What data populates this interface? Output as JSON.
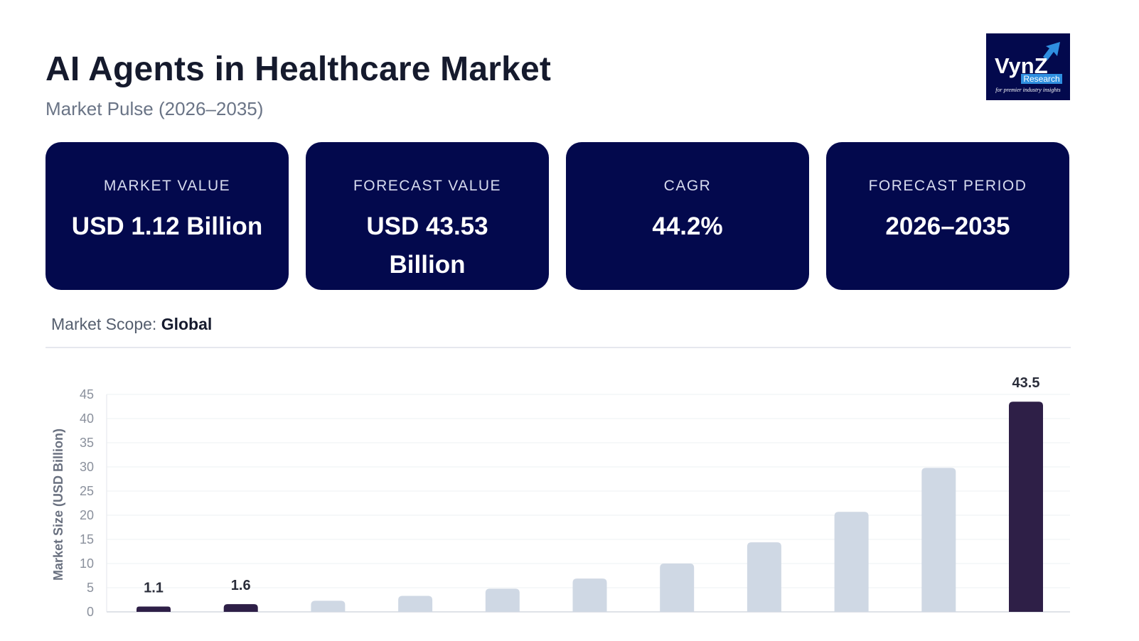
{
  "header": {
    "title": "AI Agents in Healthcare Market",
    "subtitle": "Market Pulse (2026–2035)"
  },
  "logo": {
    "brand": "VynZ",
    "tag": "Research",
    "tagline": "for premier industry insights",
    "colors": {
      "bg": "#03094d",
      "accent": "#2f8fe0"
    }
  },
  "cards": [
    {
      "label": "MARKET VALUE",
      "value": "USD 1.12 Billion"
    },
    {
      "label": "FORECAST VALUE",
      "value": "USD 43.53 Billion"
    },
    {
      "label": "CAGR",
      "value": "44.2%"
    },
    {
      "label": "FORECAST PERIOD",
      "value": "2026–2035"
    }
  ],
  "scope": {
    "label": "Market Scope:",
    "value": "Global"
  },
  "colors": {
    "card_bg": "#03094d",
    "highlight_bar": "#2e1f47",
    "bar": "#cfd8e4"
  },
  "chart_data": {
    "type": "bar",
    "ylabel": "Market Size (USD Billion)",
    "ylim": [
      0,
      45
    ],
    "yticks": [
      0,
      5,
      10,
      15,
      20,
      25,
      30,
      35,
      40,
      45
    ],
    "grid": true,
    "series": [
      {
        "values": [
          1.1,
          1.6,
          2.3,
          3.3,
          4.8,
          6.9,
          10.0,
          14.4,
          20.7,
          29.8,
          43.5
        ],
        "labels": [
          "1.1",
          "1.6",
          "",
          "",
          "",
          "",
          "",
          "",
          "",
          "",
          "43.5"
        ],
        "highlight": [
          true,
          true,
          false,
          false,
          false,
          false,
          false,
          false,
          false,
          false,
          true
        ]
      }
    ]
  }
}
